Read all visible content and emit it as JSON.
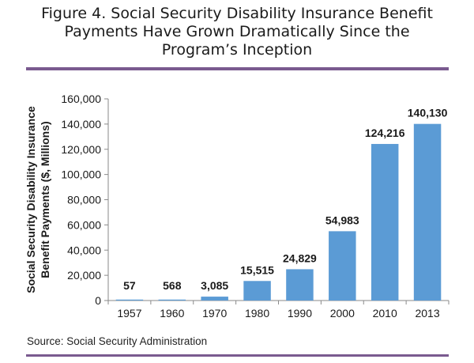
{
  "figure": {
    "title_lines": [
      "Figure 4. Social Security Disability Insurance Benefit",
      "Payments Have Grown Dramatically Since the",
      "Program’s Inception"
    ],
    "source": "Source: Social Security Administration"
  },
  "colors": {
    "rule": "#7a5a8f",
    "bar": "#5b9bd5",
    "axis": "#8a8a8a",
    "text": "#1a1a1a"
  },
  "chart_data": {
    "type": "bar",
    "title": "Figure 4. Social Security Disability Insurance Benefit Payments Have Grown Dramatically Since the Program’s Inception",
    "categories": [
      "1957",
      "1960",
      "1970",
      "1980",
      "1990",
      "2000",
      "2010",
      "2013"
    ],
    "values": [
      57,
      568,
      3085,
      15515,
      24829,
      54983,
      124216,
      140130
    ],
    "data_labels": [
      "57",
      "568",
      "3,085",
      "15,515",
      "24,829",
      "54,983",
      "124,216",
      "140,130"
    ],
    "xlabel": "",
    "ylabel_lines": [
      "Social Security Disability Insurance",
      "Benefit Payments ($, Millions)"
    ],
    "ylim": [
      0,
      160000
    ],
    "yticks": [
      0,
      20000,
      40000,
      60000,
      80000,
      100000,
      120000,
      140000,
      160000
    ],
    "ytick_labels": [
      "0",
      "20,000",
      "40,000",
      "60,000",
      "80,000",
      "100,000",
      "120,000",
      "140,000",
      "160,000"
    ],
    "grid": false,
    "legend": "none"
  }
}
